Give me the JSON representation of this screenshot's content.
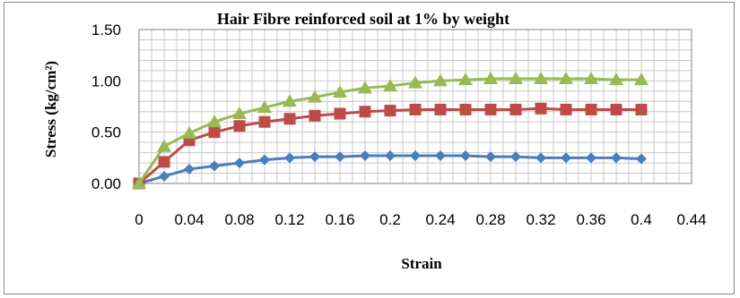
{
  "chart_data": {
    "type": "line",
    "title": "Hair Fibre reinforced soil at 1% by weight",
    "xlabel": "Strain",
    "ylabel": "Stress (kg/cm²)",
    "xlim": [
      0,
      0.44
    ],
    "ylim": [
      0,
      1.5
    ],
    "x_ticks": [
      "0",
      "0.04",
      "0.08",
      "0.12",
      "0.16",
      "0.2",
      "0.24",
      "0.28",
      "0.32",
      "0.36",
      "0.4",
      "0.44"
    ],
    "y_ticks": [
      "0.00",
      "0.50",
      "1.00",
      "1.50"
    ],
    "grid": true,
    "legend": "none",
    "x": [
      0,
      0.02,
      0.04,
      0.06,
      0.08,
      0.1,
      0.12,
      0.14,
      0.16,
      0.18,
      0.2,
      0.22,
      0.24,
      0.26,
      0.28,
      0.3,
      0.32,
      0.34,
      0.36,
      0.38,
      0.4
    ],
    "series": [
      {
        "marker": "diamond",
        "color": "#4a7ebb",
        "values": [
          0,
          0.07,
          0.14,
          0.17,
          0.2,
          0.23,
          0.25,
          0.26,
          0.26,
          0.27,
          0.27,
          0.27,
          0.27,
          0.27,
          0.26,
          0.26,
          0.25,
          0.25,
          0.25,
          0.25,
          0.24
        ]
      },
      {
        "marker": "square",
        "color": "#be4b48",
        "values": [
          0,
          0.21,
          0.42,
          0.5,
          0.56,
          0.6,
          0.63,
          0.66,
          0.68,
          0.7,
          0.71,
          0.72,
          0.72,
          0.72,
          0.72,
          0.72,
          0.73,
          0.72,
          0.72,
          0.72,
          0.72
        ]
      },
      {
        "marker": "triangle",
        "color": "#98b954",
        "values": [
          0,
          0.36,
          0.49,
          0.6,
          0.68,
          0.74,
          0.8,
          0.84,
          0.89,
          0.93,
          0.95,
          0.98,
          1.0,
          1.01,
          1.02,
          1.02,
          1.02,
          1.02,
          1.02,
          1.01,
          1.01
        ]
      }
    ]
  }
}
